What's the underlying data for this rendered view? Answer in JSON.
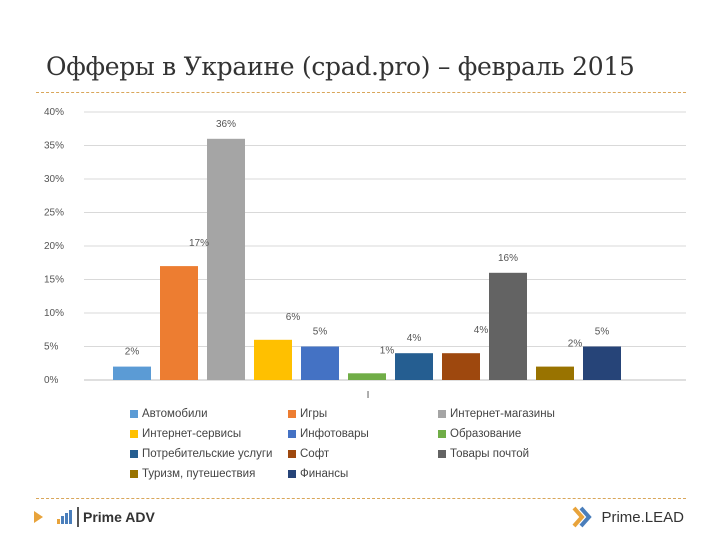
{
  "slide": {
    "title": "Офферы в Украине (cpad.pro) – февраль 2015"
  },
  "chart_data": {
    "type": "bar",
    "title": "",
    "ylim": [
      0,
      40
    ],
    "yticks": [
      "0%",
      "5%",
      "10%",
      "15%",
      "20%",
      "25%",
      "30%",
      "35%",
      "40%"
    ],
    "grid": true,
    "legend_position": "bottom",
    "x_marker": "I",
    "series": [
      {
        "name": "Автомобили",
        "value": 2,
        "label": "2%",
        "color": "#5b9bd5"
      },
      {
        "name": "Игры",
        "value": 17,
        "label": "17%",
        "color": "#ed7d31"
      },
      {
        "name": "Интернет-магазины",
        "value": 36,
        "label": "36%",
        "color": "#a5a5a5"
      },
      {
        "name": "Интернет-сервисы",
        "value": 6,
        "label": "6%",
        "color": "#ffc000"
      },
      {
        "name": "Инфотовары",
        "value": 5,
        "label": "5%",
        "color": "#4472c4"
      },
      {
        "name": "Образование",
        "value": 1,
        "label": "1%",
        "color": "#70ad47"
      },
      {
        "name": "Потребительские услуги",
        "value": 4,
        "label": "4%",
        "color": "#255e91"
      },
      {
        "name": "Софт",
        "value": 4,
        "label": "4%",
        "color": "#9e480e"
      },
      {
        "name": "Товары почтой",
        "value": 16,
        "label": "16%",
        "color": "#636363"
      },
      {
        "name": "Туризм, путешествия",
        "value": 2,
        "label": "2%",
        "color": "#997300"
      },
      {
        "name": "Финансы",
        "value": 5,
        "label": "5%",
        "color": "#264478"
      }
    ]
  },
  "footer": {
    "left_brand": "Prime ADV",
    "right_brand": "Prime.LEAD",
    "logo_colors": [
      "#e8a33b",
      "#4a7ebb",
      "#4a7ebb",
      "#4a7ebb"
    ]
  }
}
